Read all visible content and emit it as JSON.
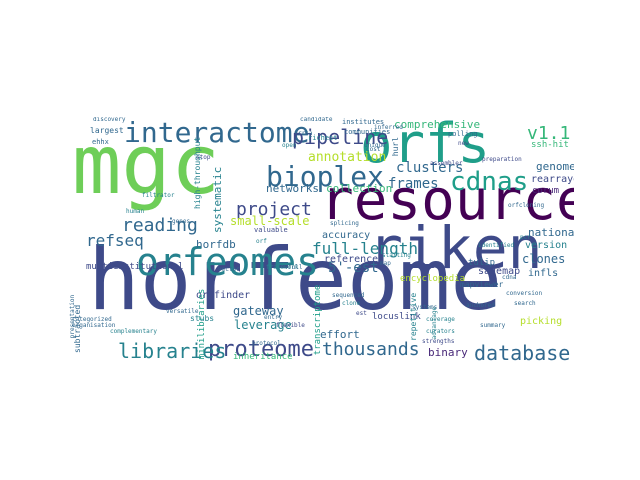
{
  "word_cloud": {
    "palette": {
      "darkpurple": "#440154",
      "purple": "#482878",
      "indigo": "#3e4a89",
      "blue": "#31688e",
      "teal": "#26828e",
      "green": "#1f9e89",
      "mint": "#35b779",
      "lime": "#6ece58",
      "yellowgreen": "#b5de2b",
      "yellow": "#fde725"
    },
    "words": [
      {
        "text": "horfeome",
        "color": "#3e4a89"
      },
      {
        "text": "mgc",
        "color": "#6ece58"
      },
      {
        "text": "orfs",
        "color": "#1f9e89"
      },
      {
        "text": "resource",
        "color": "#440154"
      },
      {
        "text": "riken",
        "color": "#3e4a89"
      },
      {
        "text": "orfeomes",
        "color": "#26828e"
      },
      {
        "text": "interactome",
        "color": "#31688e"
      },
      {
        "text": "bioplex",
        "color": "#31688e"
      },
      {
        "text": "proteome",
        "color": "#3e4a89"
      },
      {
        "text": "cdnas",
        "color": "#1f9e89"
      },
      {
        "text": "libraries",
        "color": "#26828e"
      },
      {
        "text": "database",
        "color": "#31688e"
      },
      {
        "text": "thousands",
        "color": "#31688e"
      },
      {
        "text": "pipeline",
        "color": "#3e4a89"
      },
      {
        "text": "v1.1",
        "color": "#35b779"
      },
      {
        "text": "reading",
        "color": "#31688e"
      },
      {
        "text": "refseq",
        "color": "#31688e"
      },
      {
        "text": "project",
        "color": "#3e4a89"
      },
      {
        "text": "frames",
        "color": "#31688e"
      },
      {
        "text": "full-length",
        "color": "#26828e"
      },
      {
        "text": "clusters",
        "color": "#31688e"
      },
      {
        "text": "comprehensive",
        "color": "#35b779"
      },
      {
        "text": "annotation",
        "color": "#b5de2b"
      },
      {
        "text": "genome",
        "color": "#31688e"
      },
      {
        "text": "rearrayed",
        "color": "#3e4a89"
      },
      {
        "text": "collection",
        "color": "#35b779"
      },
      {
        "text": "networks",
        "color": "#31688e"
      },
      {
        "text": "small-scale",
        "color": "#b5de2b"
      },
      {
        "text": "systematic",
        "color": "#26828e"
      },
      {
        "text": "national",
        "color": "#31688e"
      },
      {
        "text": "clones",
        "color": "#31688e"
      },
      {
        "text": "5'-est",
        "color": "#31688e"
      },
      {
        "text": "gateway",
        "color": "#31688e"
      },
      {
        "text": "leverage",
        "color": "#26828e"
      },
      {
        "text": "binary",
        "color": "#482878"
      },
      {
        "text": "horfdb",
        "color": "#31688e"
      },
      {
        "text": "reference",
        "color": "#3e4a89"
      },
      {
        "text": "accuracy",
        "color": "#31688e"
      },
      {
        "text": "version",
        "color": "#26828e"
      },
      {
        "text": "sagemap",
        "color": "#3e4a89"
      },
      {
        "text": "infls",
        "color": "#31688e"
      },
      {
        "text": "encyclopedia",
        "color": "#b5de2b"
      },
      {
        "text": "tulip",
        "color": "#31688e"
      },
      {
        "text": "orffinder",
        "color": "#3e4a89"
      },
      {
        "text": "multiinstitutional",
        "color": "#3e4a89"
      },
      {
        "text": "minilibraries",
        "color": "#1f9e89"
      },
      {
        "text": "transcriptome",
        "color": "#1f9e89"
      },
      {
        "text": "locuslink",
        "color": "#3e4a89"
      },
      {
        "text": "mapviewer",
        "color": "#31688e"
      },
      {
        "text": "high-throughput",
        "color": "#26828e"
      },
      {
        "text": "ssh-hit",
        "color": "#35b779"
      },
      {
        "text": "corum",
        "color": "#482878"
      },
      {
        "text": "picking",
        "color": "#b5de2b"
      },
      {
        "text": "effort",
        "color": "#31688e"
      },
      {
        "text": "stubs",
        "color": "#26828e"
      },
      {
        "text": "inheritance",
        "color": "#35b779"
      },
      {
        "text": "subtracted",
        "color": "#31688e"
      },
      {
        "text": "largest",
        "color": "#31688e"
      },
      {
        "text": "ehhx",
        "color": "#31688e"
      },
      {
        "text": "framework",
        "color": "#26828e"
      },
      {
        "text": "institutes",
        "color": "#31688e"
      },
      {
        "text": "communities",
        "color": "#31688e"
      },
      {
        "text": "richest",
        "color": "#26828e"
      },
      {
        "text": "polling",
        "color": "#31688e"
      },
      {
        "text": "valuable",
        "color": "#3e4a89"
      },
      {
        "text": "hurl",
        "color": "#31688e"
      },
      {
        "text": "splicing",
        "color": "#31688e"
      },
      {
        "text": "starting",
        "color": "#26828e"
      },
      {
        "text": "map",
        "color": "#31688e"
      },
      {
        "text": "repetitive",
        "color": "#26828e"
      },
      {
        "text": "systems",
        "color": "#31688e"
      },
      {
        "text": "curators",
        "color": "#26828e"
      },
      {
        "text": "discovery",
        "color": "#31688e"
      },
      {
        "text": "candidate",
        "color": "#31688e"
      },
      {
        "text": "preparation",
        "color": "#3e4a89"
      },
      {
        "text": "assembler",
        "color": "#3e4a89"
      },
      {
        "text": "summary",
        "color": "#31688e"
      },
      {
        "text": "organisation",
        "color": "#31688e"
      },
      {
        "text": "filtrator",
        "color": "#26828e"
      },
      {
        "text": "presentation",
        "color": "#31688e"
      },
      {
        "text": "complementary",
        "color": "#26828e"
      },
      {
        "text": "categorized",
        "color": "#31688e"
      },
      {
        "text": "protocol",
        "color": "#31688e"
      },
      {
        "text": "strengths",
        "color": "#3e4a89"
      },
      {
        "text": "search",
        "color": "#31688e"
      },
      {
        "text": "coverage",
        "color": "#26828e"
      },
      {
        "text": "conversion",
        "color": "#31688e"
      },
      {
        "text": "inferred",
        "color": "#31688e"
      },
      {
        "text": "unique",
        "color": "#31688e"
      },
      {
        "text": "rrsa",
        "color": "#31688e"
      },
      {
        "text": "identified",
        "color": "#26828e"
      },
      {
        "text": "advantage",
        "color": "#26828e"
      },
      {
        "text": "anchored",
        "color": "#31688e"
      },
      {
        "text": "orfcloning",
        "color": "#31688e"
      },
      {
        "text": "flexible",
        "color": "#3e4a89"
      },
      {
        "text": "versatile",
        "color": "#31688e"
      },
      {
        "text": "stop",
        "color": "#3e4a89"
      },
      {
        "text": "entry",
        "color": "#31688e"
      },
      {
        "text": "clone",
        "color": "#26828e"
      },
      {
        "text": "human",
        "color": "#26828e"
      },
      {
        "text": "genes",
        "color": "#31688e"
      },
      {
        "text": "full",
        "color": "#31688e"
      },
      {
        "text": "orf",
        "color": "#26828e"
      },
      {
        "text": "sequenced",
        "color": "#31688e"
      },
      {
        "text": "cdna",
        "color": "#31688e"
      },
      {
        "text": "est",
        "color": "#3e4a89"
      },
      {
        "text": "pcr",
        "color": "#26828e"
      },
      {
        "text": "cost",
        "color": "#31688e"
      },
      {
        "text": "new",
        "color": "#3e4a89"
      },
      {
        "text": "open",
        "color": "#26828e"
      },
      {
        "text": "vector",
        "color": "#31688e"
      },
      {
        "text": "db",
        "color": "#31688e"
      }
    ]
  }
}
